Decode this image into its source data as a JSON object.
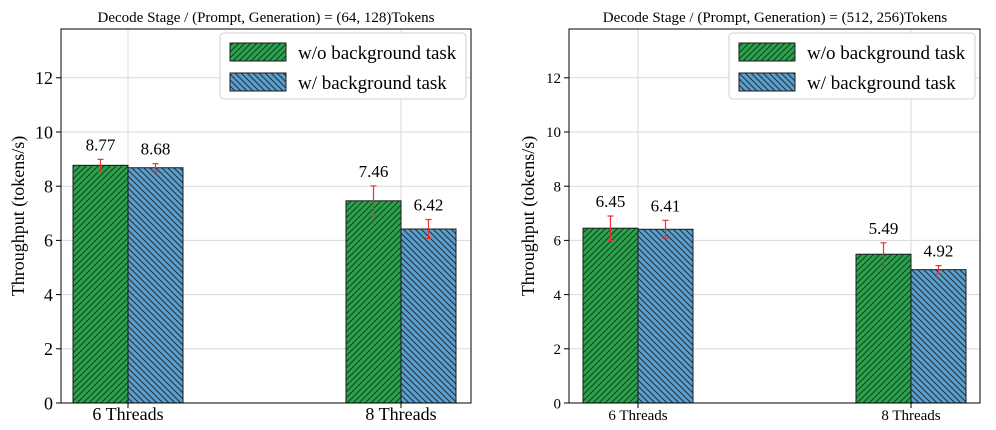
{
  "colors": {
    "series1": "#2ca24f",
    "series2": "#5aa0cc",
    "errorbar": "#e8322b"
  },
  "chart_data": [
    {
      "type": "bar",
      "title": "Decode Stage / (Prompt, Generation) = (64, 128)Tokens",
      "xlabel": "",
      "ylabel": "Throughput (tokens/s)",
      "categories": [
        "6 Threads",
        "8 Threads"
      ],
      "ylim": [
        0,
        13.8
      ],
      "yticks": [
        0,
        2,
        4,
        6,
        8,
        10,
        12
      ],
      "grid": true,
      "legend_position": "top-right",
      "series": [
        {
          "name": "w/o background task",
          "values": [
            8.77,
            7.46
          ],
          "errors": [
            0.22,
            0.55
          ],
          "labels": [
            "8.77",
            "7.46"
          ]
        },
        {
          "name": "w/ background task",
          "values": [
            8.68,
            6.42
          ],
          "errors": [
            0.15,
            0.35
          ],
          "labels": [
            "8.68",
            "6.42"
          ]
        }
      ]
    },
    {
      "type": "bar",
      "title": "Decode Stage / (Prompt, Generation) = (512, 256)Tokens",
      "xlabel": "",
      "ylabel": "Throughput (tokens/s)",
      "categories": [
        "6 Threads",
        "8 Threads"
      ],
      "ylim": [
        0,
        13.8
      ],
      "yticks": [
        0,
        2,
        4,
        6,
        8,
        10,
        12
      ],
      "grid": true,
      "legend_position": "top-right",
      "series": [
        {
          "name": "w/o background task",
          "values": [
            6.45,
            5.49
          ],
          "errors": [
            0.45,
            0.42
          ],
          "labels": [
            "6.45",
            "5.49"
          ]
        },
        {
          "name": "w/ background task",
          "values": [
            6.41,
            4.92
          ],
          "errors": [
            0.33,
            0.15
          ],
          "labels": [
            "6.41",
            "4.92"
          ]
        }
      ]
    }
  ]
}
